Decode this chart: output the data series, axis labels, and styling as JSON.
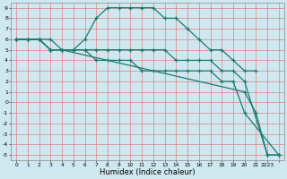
{
  "title": "",
  "xlabel": "Humidex (Indice chaleur)",
  "bg_color": "#cfe8f0",
  "grid_color": "#ff9999",
  "line_color": "#1a7a6e",
  "xlim": [
    -0.5,
    23.5
  ],
  "ylim": [
    -5.5,
    9.5
  ],
  "xtick_labels": [
    "0",
    "1",
    "2",
    "3",
    "4",
    "5",
    "6",
    "7",
    "8",
    "9",
    "10",
    "11",
    "12",
    "13",
    "14",
    "15",
    "16",
    "17",
    "18",
    "19",
    "20",
    "21",
    "2223"
  ],
  "xtick_vals": [
    0,
    1,
    2,
    3,
    4,
    5,
    6,
    7,
    8,
    9,
    10,
    11,
    12,
    13,
    14,
    15,
    16,
    17,
    18,
    19,
    20,
    21,
    22
  ],
  "ytick_labels": [
    "9",
    "8",
    "7",
    "6",
    "5",
    "4",
    "3",
    "2",
    "1",
    "0",
    "-1",
    "-2",
    "-3",
    "-4",
    "-5"
  ],
  "ytick_vals": [
    9,
    8,
    7,
    6,
    5,
    4,
    3,
    2,
    1,
    0,
    -1,
    -2,
    -3,
    -4,
    -5
  ],
  "series": [
    {
      "x": [
        0,
        1,
        2,
        3,
        4,
        5,
        6,
        7,
        8,
        9,
        10,
        11,
        12,
        13,
        14,
        15,
        16,
        17,
        18,
        19,
        20,
        21
      ],
      "y": [
        6,
        6,
        6,
        6,
        5,
        5,
        6,
        8,
        9,
        9,
        9,
        9,
        9,
        8,
        8,
        7,
        6,
        5,
        5,
        4,
        3,
        3
      ]
    },
    {
      "x": [
        0,
        1,
        2,
        3,
        4,
        20,
        21,
        22,
        23
      ],
      "y": [
        6,
        6,
        6,
        5,
        5,
        1,
        -1,
        -5,
        -5
      ]
    },
    {
      "x": [
        0,
        1,
        2,
        3,
        4,
        5,
        6,
        7,
        8,
        9,
        10,
        11,
        12,
        13,
        14,
        15,
        16,
        17,
        18,
        19,
        20,
        22,
        23
      ],
      "y": [
        6,
        6,
        6,
        5,
        5,
        5,
        5,
        5,
        5,
        5,
        5,
        5,
        5,
        5,
        4,
        4,
        4,
        4,
        3,
        3,
        2,
        -5,
        -5
      ]
    },
    {
      "x": [
        0,
        1,
        2,
        3,
        4,
        5,
        6,
        7,
        8,
        9,
        10,
        11,
        12,
        13,
        14,
        15,
        16,
        17,
        18,
        19,
        20,
        23
      ],
      "y": [
        6,
        6,
        6,
        5,
        5,
        5,
        5,
        4,
        4,
        4,
        4,
        3,
        3,
        3,
        3,
        3,
        3,
        3,
        2,
        2,
        -1,
        -5
      ]
    }
  ]
}
